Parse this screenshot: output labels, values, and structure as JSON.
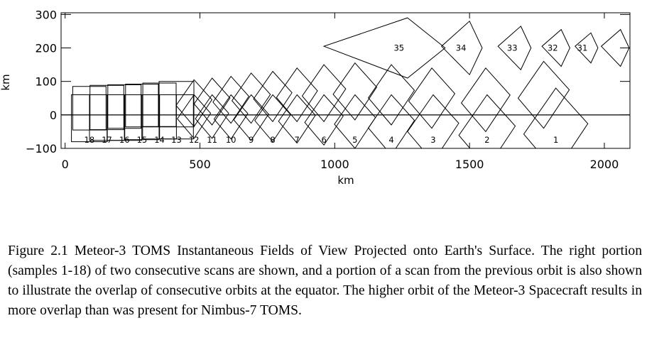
{
  "chart_data": {
    "type": "diagram",
    "xlabel": "km",
    "ylabel": "km",
    "xlim": [
      -15,
      2095
    ],
    "ylim": [
      -100,
      305
    ],
    "x_ticks": [
      0,
      500,
      1000,
      1500,
      2000
    ],
    "y_ticks": [
      300,
      200,
      100,
      0,
      -100
    ],
    "baseline_y": 0,
    "scan1_fov": [
      {
        "label": "1",
        "cx": 1820,
        "cy": -45,
        "top": 80
      },
      {
        "label": "2",
        "cx": 1565,
        "cy": -50,
        "top": 60
      },
      {
        "label": "3",
        "cx": 1365,
        "cy": -40,
        "top": 60
      },
      {
        "label": "4",
        "cx": 1210,
        "cy": -30,
        "top": 60
      },
      {
        "label": "5",
        "cx": 1075,
        "cy": -20,
        "top": 60
      },
      {
        "label": "6",
        "cx": 960,
        "cy": -15,
        "top": 60
      },
      {
        "label": "7",
        "cx": 860,
        "cy": -12,
        "top": 60
      },
      {
        "label": "8",
        "cx": 770,
        "cy": -10,
        "top": 60
      },
      {
        "label": "9",
        "cx": 690,
        "cy": -8,
        "top": 60
      },
      {
        "label": "10",
        "cx": 615,
        "cy": -6,
        "top": 60
      },
      {
        "label": "11",
        "cx": 545,
        "cy": -5,
        "top": 60
      },
      {
        "label": "12",
        "cx": 478,
        "cy": -5,
        "top": 60
      },
      {
        "label": "13",
        "cx": 413,
        "cy": -6,
        "top": 60
      },
      {
        "label": "14",
        "cx": 350,
        "cy": -6,
        "top": 60
      },
      {
        "label": "15",
        "cx": 285,
        "cy": -7,
        "top": 60
      },
      {
        "label": "16",
        "cx": 220,
        "cy": -8,
        "top": 60
      },
      {
        "label": "17",
        "cx": 155,
        "cy": -8,
        "top": 60
      },
      {
        "label": "18",
        "cx": 90,
        "cy": -10,
        "top": 60
      }
    ],
    "scan2_fov": [
      {
        "cx": 1775,
        "cy": 60,
        "top": 160
      },
      {
        "cx": 1560,
        "cy": 45,
        "top": 140
      },
      {
        "cx": 1360,
        "cy": 50,
        "top": 140
      },
      {
        "cx": 1210,
        "cy": 60,
        "top": 150
      },
      {
        "cx": 1075,
        "cy": 70,
        "top": 155
      },
      {
        "cx": 960,
        "cy": 65,
        "top": 150
      },
      {
        "cx": 860,
        "cy": 60,
        "top": 140
      },
      {
        "cx": 770,
        "cy": 55,
        "top": 130
      },
      {
        "cx": 690,
        "cy": 50,
        "top": 125
      },
      {
        "cx": 615,
        "cy": 45,
        "top": 115
      },
      {
        "cx": 545,
        "cy": 40,
        "top": 110
      },
      {
        "cx": 478,
        "cy": 35,
        "top": 105
      },
      {
        "cx": 413,
        "cy": 32,
        "top": 100
      },
      {
        "cx": 350,
        "cy": 30,
        "top": 95
      },
      {
        "cx": 285,
        "cy": 28,
        "top": 92
      },
      {
        "cx": 220,
        "cy": 25,
        "top": 90
      },
      {
        "cx": 155,
        "cy": 22,
        "top": 88
      },
      {
        "cx": 90,
        "cy": 20,
        "top": 85
      }
    ],
    "prev_orbit_fov": [
      {
        "label": "35",
        "cx": 1270,
        "cy": 200,
        "top": 290
      },
      {
        "label": "34",
        "cx": 1500,
        "cy": 200,
        "top": 280
      },
      {
        "label": "33",
        "cx": 1690,
        "cy": 200,
        "top": 265
      },
      {
        "label": "32",
        "cx": 1840,
        "cy": 200,
        "top": 255
      },
      {
        "label": "31",
        "cx": 1950,
        "cy": 200,
        "top": 245
      },
      {
        "label": "",
        "cx": 2060,
        "cy": 200,
        "top": 255
      }
    ]
  },
  "caption": {
    "text": "Figure 2.1 Meteor-3 TOMS Instantaneous Fields of View Projected onto Earth's Surface. The right portion (samples 1-18) of two consecutive scans are shown, and a portion of a scan from the previous orbit is also shown to illustrate the overlap of consecutive orbits at the equator. The higher orbit of the Meteor-3 Spacecraft results in more overlap than was present for Nimbus-7 TOMS."
  }
}
